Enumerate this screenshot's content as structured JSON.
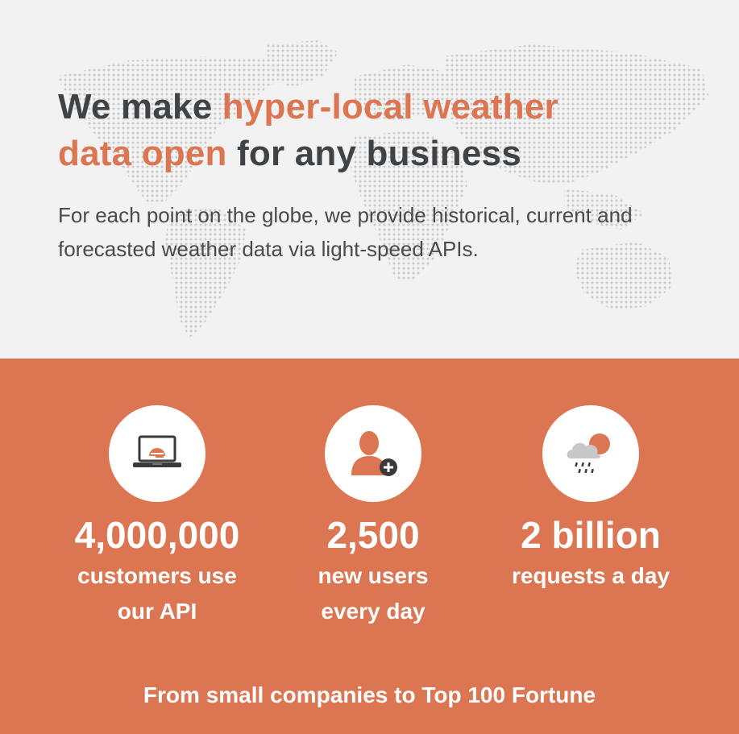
{
  "hero": {
    "headline_part1": "We make ",
    "headline_accent1": "hyper-local weather",
    "headline_accent2": "data open",
    "headline_part2": " for any business",
    "subtitle": "For each point on the globe, we provide historical, current and forecasted weather data via light-speed APIs."
  },
  "stats": [
    {
      "icon": "laptop-sun-icon",
      "number": "4,000,000",
      "label_line1": "customers use",
      "label_line2": "our API"
    },
    {
      "icon": "user-add-icon",
      "number": "2,500",
      "label_line1": "new users",
      "label_line2": "every day"
    },
    {
      "icon": "rain-cloud-sun-icon",
      "number": "2 billion",
      "label_line1": "requests a day",
      "label_line2": ""
    }
  ],
  "footer": {
    "text": "From small companies to Top 100 Fortune"
  },
  "colors": {
    "accent": "#dc7552",
    "text_dark": "#404345",
    "hero_bg": "#f2f2f2"
  }
}
